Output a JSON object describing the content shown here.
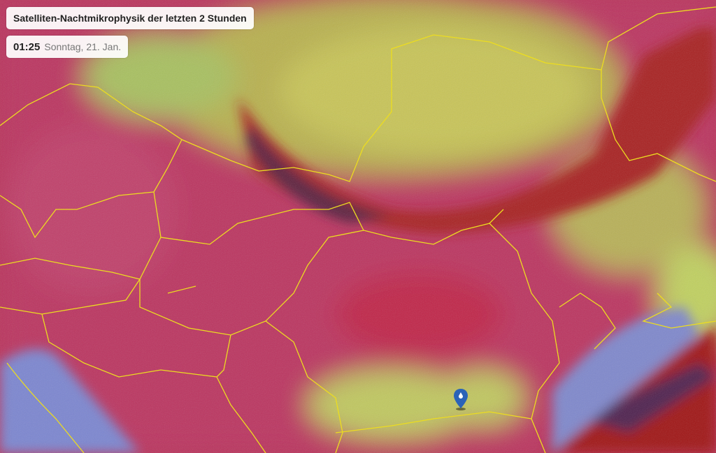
{
  "header": {
    "title": "Satelliten-Nachtmikrophysik der letzten 2 Stunden"
  },
  "timestamp": {
    "time": "01:25",
    "date": "Sonntag, 21. Jan."
  },
  "map": {
    "layer": "satellite-night-microphysics",
    "colors": {
      "clear_land": "#b8335a",
      "low_cloud": "#c8d060",
      "high_cloud": "#a81c1c",
      "sea": "#7a88d0",
      "borders": "#f0e020"
    },
    "marker": {
      "icon": "location-pin-icon",
      "color": "#2a63b8"
    }
  }
}
